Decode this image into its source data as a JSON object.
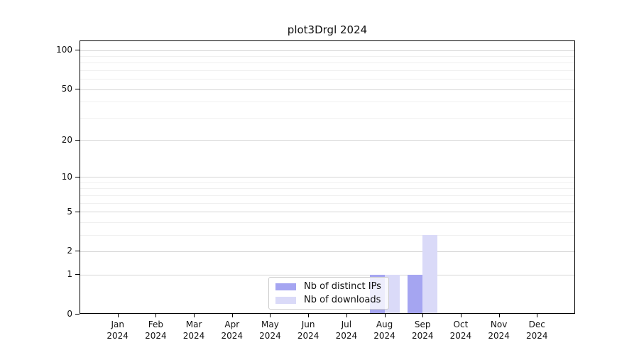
{
  "title": "plot3Drgl 2024",
  "chart_data": {
    "type": "bar",
    "title": "plot3Drgl 2024",
    "categories": [
      "Jan",
      "Feb",
      "Mar",
      "Apr",
      "May",
      "Jun",
      "Jul",
      "Aug",
      "Sep",
      "Oct",
      "Nov",
      "Dec"
    ],
    "category_year": "2024",
    "series": [
      {
        "name": "Nb of distinct IPs",
        "color": "#a5a5f1",
        "values": [
          0,
          0,
          0,
          0,
          0,
          0,
          0,
          1,
          1,
          0,
          0,
          0
        ]
      },
      {
        "name": "Nb of downloads",
        "color": "#dadaf8",
        "values": [
          0,
          0,
          0,
          0,
          0,
          0,
          0,
          1,
          3,
          0,
          0,
          0
        ]
      }
    ],
    "yscale": "log1p",
    "ylim": [
      0,
      118
    ],
    "yticks": [
      0,
      1,
      2,
      5,
      10,
      20,
      50,
      100
    ],
    "minor_yticks": [
      3,
      4,
      6,
      7,
      8,
      9,
      30,
      40,
      60,
      70,
      80,
      90
    ],
    "grid": true,
    "legend_position": "bottom-center"
  },
  "colors": {
    "spine": "#000000",
    "grid_major": "#d6d6d6",
    "grid_minor": "#f0f0f0",
    "legend_border": "#cccccc"
  }
}
